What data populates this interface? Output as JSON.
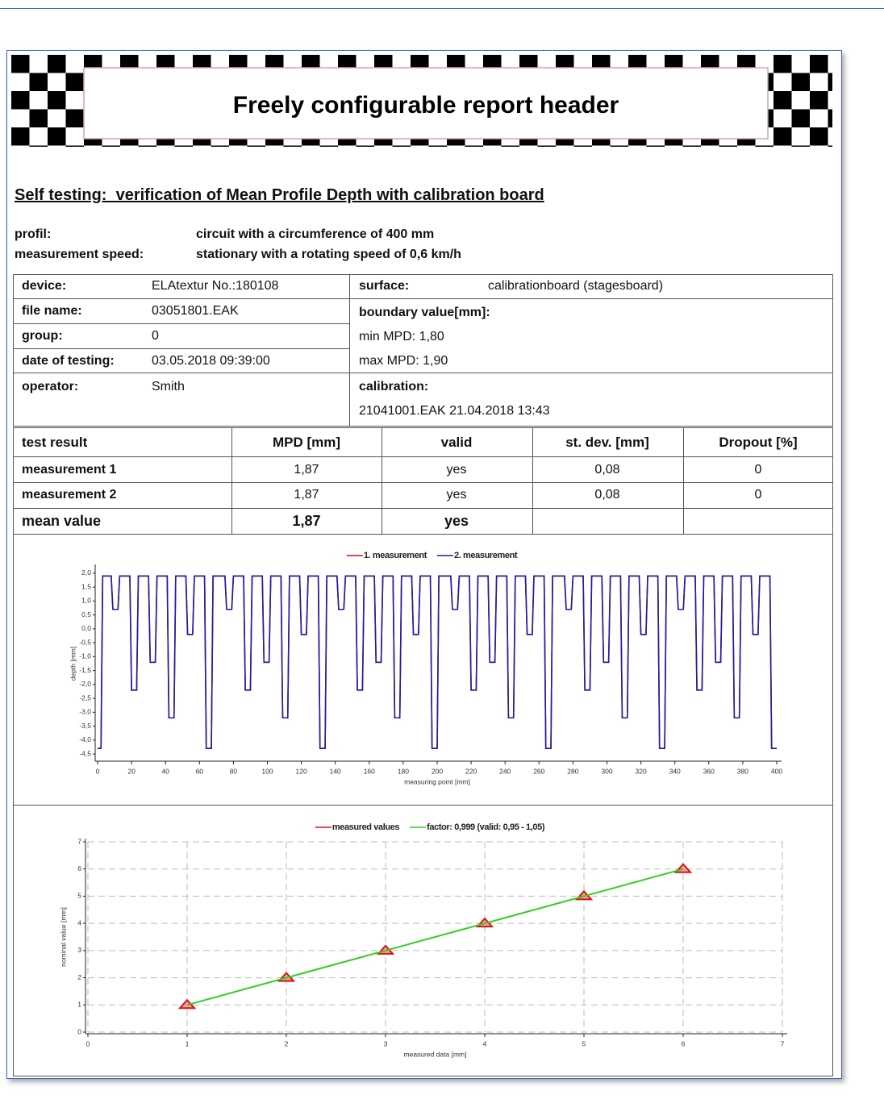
{
  "header": {
    "title": "Freely configurable report header"
  },
  "heading": "Self testing:  verification of Mean Profile Depth with calibration board",
  "settings": [
    {
      "label": "profil:",
      "value": "circuit with a circumference of 400 mm"
    },
    {
      "label": "measurement speed:",
      "value": "stationary with a rotating speed of 0,6 km/h"
    }
  ],
  "device": {
    "rows": [
      [
        "device:",
        "ELAtextur No.:180108"
      ],
      [
        "file name:",
        "03051801.EAK"
      ],
      [
        "group:",
        "0"
      ],
      [
        "date of testing:",
        "03.05.2018 09:39:00"
      ],
      [
        "operator:",
        "Smith"
      ]
    ]
  },
  "surface": {
    "label": "surface:",
    "value": "calibrationboard (stagesboard)"
  },
  "boundary": {
    "label": "boundary value[mm]:",
    "min": "min MPD: 1,80",
    "max": "max MPD: 1,90"
  },
  "calibration": {
    "label": "calibration:",
    "value": "21041001.EAK 21.04.2018 13:43"
  },
  "results": {
    "header": [
      "test result",
      "MPD [mm]",
      "valid",
      "st. dev. [mm]",
      "Dropout [%]"
    ],
    "rows": [
      [
        "measurement 1",
        "1,87",
        "yes",
        "0,08",
        "0"
      ],
      [
        "measurement 2",
        "1,87",
        "yes",
        "0,08",
        "0"
      ],
      [
        "mean value",
        "1,87",
        "yes"
      ]
    ]
  },
  "chart_data": [
    {
      "type": "line",
      "x_label": "measuring point [mm]",
      "y_label": "depth [mm]",
      "grid": false,
      "xlim": [
        0,
        400
      ],
      "xticks": [
        0,
        20,
        40,
        60,
        80,
        100,
        120,
        140,
        160,
        180,
        200,
        220,
        240,
        260,
        280,
        300,
        320,
        340,
        360,
        380,
        400
      ],
      "ylim": [
        -4.7,
        2.2
      ],
      "yticks": [
        {
          "value": 2,
          "label": "2,0"
        },
        {
          "value": 1.5,
          "label": "1,5"
        },
        {
          "value": 1,
          "label": "1,0"
        },
        {
          "value": 0.5,
          "label": "0,5"
        },
        {
          "value": 0,
          "label": "0,0"
        },
        {
          "value": -0.5,
          "label": "-0,5"
        },
        {
          "value": -1,
          "label": "-1,0"
        },
        {
          "value": -1.5,
          "label": "-1,5"
        },
        {
          "value": -2,
          "label": "-2,0"
        },
        {
          "value": -2.5,
          "label": "-2,5"
        },
        {
          "value": -3,
          "label": "-3,0"
        },
        {
          "value": -3.5,
          "label": "-3,5"
        },
        {
          "value": -4,
          "label": "-4,0"
        },
        {
          "value": -4.5,
          "label": "-4,5"
        }
      ],
      "x": [
        0,
        2,
        3,
        8,
        9,
        12,
        13,
        19,
        20,
        23,
        24,
        30,
        31,
        34,
        35,
        41,
        42,
        45,
        46,
        52,
        53,
        56,
        57,
        63,
        64,
        67,
        68,
        75,
        76,
        79,
        80,
        86,
        87,
        90,
        91,
        97,
        98,
        101,
        102,
        108,
        109,
        112,
        113,
        119,
        120,
        123,
        124,
        130,
        131,
        134,
        135,
        141,
        142,
        145,
        146,
        152,
        153,
        156,
        157,
        163,
        164,
        167,
        168,
        174,
        175,
        178,
        179,
        185,
        186,
        189,
        190,
        196,
        197,
        200,
        201,
        208,
        209,
        212,
        213,
        219,
        220,
        223,
        224,
        230,
        231,
        234,
        235,
        241,
        242,
        245,
        246,
        252,
        253,
        256,
        257,
        263,
        264,
        267,
        268,
        275,
        276,
        279,
        280,
        286,
        287,
        290,
        291,
        297,
        298,
        301,
        302,
        308,
        309,
        312,
        313,
        319,
        320,
        323,
        324,
        330,
        331,
        334,
        335,
        341,
        342,
        345,
        346,
        352,
        353,
        356,
        357,
        363,
        364,
        367,
        368,
        374,
        375,
        378,
        379,
        385,
        386,
        389,
        390,
        396,
        397,
        400
      ],
      "series": [
        {
          "name": "1. measurement",
          "color": "#cc1111",
          "values": [
            -4.3,
            -4.3,
            1.9,
            1.9,
            0.7,
            0.7,
            1.9,
            1.9,
            -2.2,
            -2.2,
            1.9,
            1.9,
            -1.2,
            -1.2,
            1.9,
            1.9,
            -3.2,
            -3.2,
            1.9,
            1.9,
            -0.2,
            -0.2,
            1.9,
            1.9,
            -4.3,
            -4.3,
            1.9,
            1.9,
            0.7,
            0.7,
            1.9,
            1.9,
            -2.2,
            -2.2,
            1.9,
            1.9,
            -1.2,
            -1.2,
            1.9,
            1.9,
            -3.2,
            -3.2,
            1.9,
            1.9,
            -0.2,
            -0.2,
            1.9,
            1.9,
            -4.3,
            -4.3,
            1.9,
            1.9,
            0.7,
            0.7,
            1.9,
            1.9,
            -2.2,
            -2.2,
            1.9,
            1.9,
            -1.2,
            -1.2,
            1.9,
            1.9,
            -3.2,
            -3.2,
            1.9,
            1.9,
            -0.2,
            -0.2,
            1.9,
            1.9,
            -4.3,
            -4.3,
            1.9,
            1.9,
            0.7,
            0.7,
            1.9,
            1.9,
            -2.2,
            -2.2,
            1.9,
            1.9,
            -1.2,
            -1.2,
            1.9,
            1.9,
            -3.2,
            -3.2,
            1.9,
            1.9,
            -0.2,
            -0.2,
            1.9,
            1.9,
            -4.3,
            -4.3,
            1.9,
            1.9,
            0.7,
            0.7,
            1.9,
            1.9,
            -2.2,
            -2.2,
            1.9,
            1.9,
            -1.2,
            -1.2,
            1.9,
            1.9,
            -3.2,
            -3.2,
            1.9,
            1.9,
            -0.2,
            -0.2,
            1.9,
            1.9,
            -4.3,
            -4.3,
            1.9,
            1.9,
            0.7,
            0.7,
            1.9,
            1.9,
            -2.2,
            -2.2,
            1.9,
            1.9,
            -1.2,
            -1.2,
            1.9,
            1.9,
            -3.2,
            -3.2,
            1.9,
            1.9,
            -0.2,
            -0.2,
            1.9,
            1.9,
            -4.3,
            -4.3
          ]
        },
        {
          "name": "2. measurement",
          "color": "#1c1ca8",
          "values": [
            -4.3,
            -4.3,
            1.9,
            1.9,
            0.7,
            0.7,
            1.9,
            1.9,
            -2.2,
            -2.2,
            1.9,
            1.9,
            -1.2,
            -1.2,
            1.9,
            1.9,
            -3.2,
            -3.2,
            1.9,
            1.9,
            -0.2,
            -0.2,
            1.9,
            1.9,
            -4.3,
            -4.3,
            1.9,
            1.9,
            0.7,
            0.7,
            1.9,
            1.9,
            -2.2,
            -2.2,
            1.9,
            1.9,
            -1.2,
            -1.2,
            1.9,
            1.9,
            -3.2,
            -3.2,
            1.9,
            1.9,
            -0.2,
            -0.2,
            1.9,
            1.9,
            -4.3,
            -4.3,
            1.9,
            1.9,
            0.7,
            0.7,
            1.9,
            1.9,
            -2.2,
            -2.2,
            1.9,
            1.9,
            -1.2,
            -1.2,
            1.9,
            1.9,
            -3.2,
            -3.2,
            1.9,
            1.9,
            -0.2,
            -0.2,
            1.9,
            1.9,
            -4.3,
            -4.3,
            1.9,
            1.9,
            0.7,
            0.7,
            1.9,
            1.9,
            -2.2,
            -2.2,
            1.9,
            1.9,
            -1.2,
            -1.2,
            1.9,
            1.9,
            -3.2,
            -3.2,
            1.9,
            1.9,
            -0.2,
            -0.2,
            1.9,
            1.9,
            -4.3,
            -4.3,
            1.9,
            1.9,
            0.7,
            0.7,
            1.9,
            1.9,
            -2.2,
            -2.2,
            1.9,
            1.9,
            -1.2,
            -1.2,
            1.9,
            1.9,
            -3.2,
            -3.2,
            1.9,
            1.9,
            -0.2,
            -0.2,
            1.9,
            1.9,
            -4.3,
            -4.3,
            1.9,
            1.9,
            0.7,
            0.7,
            1.9,
            1.9,
            -2.2,
            -2.2,
            1.9,
            1.9,
            -1.2,
            -1.2,
            1.9,
            1.9,
            -3.2,
            -3.2,
            1.9,
            1.9,
            -0.2,
            -0.2,
            1.9,
            1.9,
            -4.3,
            -4.3
          ]
        }
      ]
    },
    {
      "type": "line",
      "x_label": "measured data [mm]",
      "y_label": "nominal value [mm]",
      "grid": true,
      "xlim": [
        0,
        7
      ],
      "xticks": [
        0,
        1,
        2,
        3,
        4,
        5,
        6,
        7
      ],
      "ylim": [
        0,
        7
      ],
      "yticks": [
        0,
        1,
        2,
        3,
        4,
        5,
        6,
        7
      ],
      "series": [
        {
          "name": "measured values",
          "color": "#dd1111",
          "marker": "triangle",
          "line": false,
          "x": [
            1,
            2,
            3,
            4,
            5,
            6
          ],
          "values": [
            1,
            2,
            3,
            4,
            5,
            6
          ]
        },
        {
          "name": "factor: 0,999 (valid: 0,95 - 1,05)",
          "color": "#33cc22",
          "line": true,
          "x": [
            1,
            6
          ],
          "values": [
            1,
            6
          ]
        }
      ]
    }
  ]
}
